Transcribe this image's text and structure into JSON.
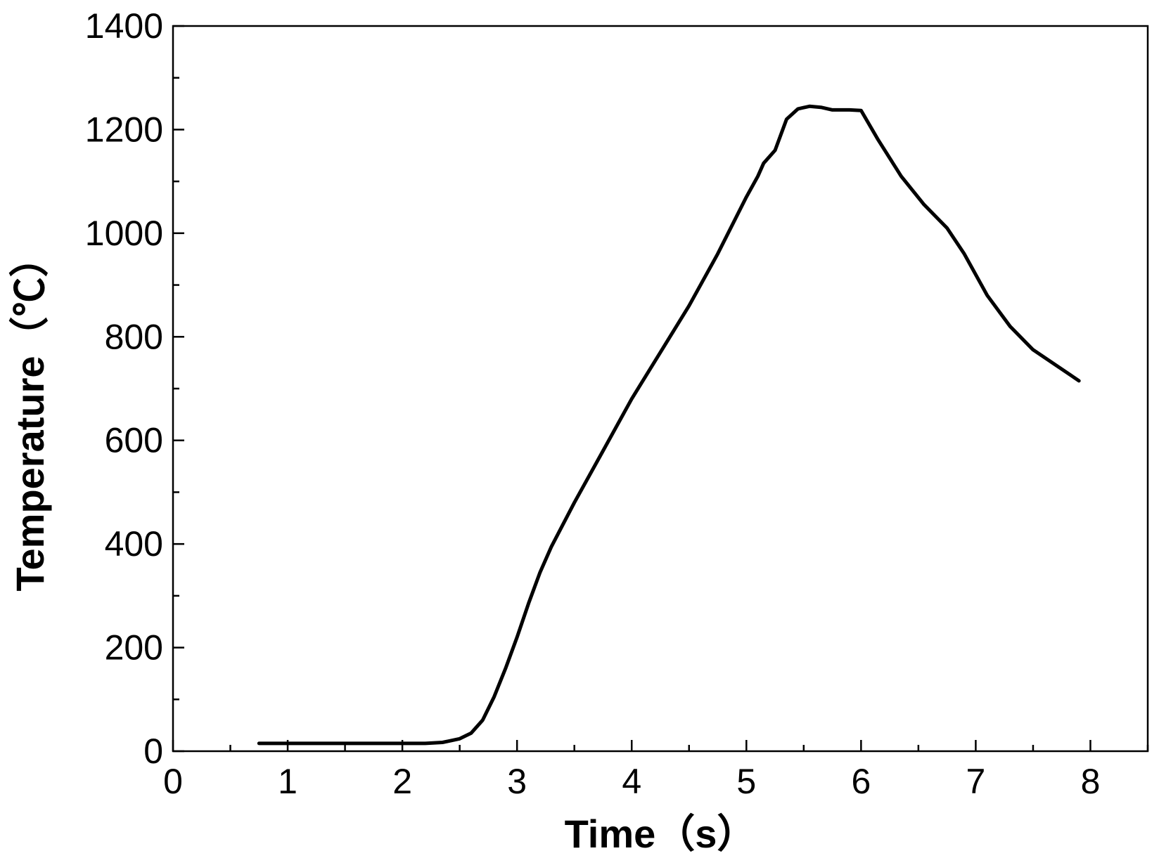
{
  "chart_data": {
    "type": "line",
    "xlabel": "Time（s）",
    "ylabel": "Temperature（℃）",
    "xlim": [
      0,
      8.5
    ],
    "ylim": [
      0,
      1400
    ],
    "xticks": [
      0,
      1,
      2,
      3,
      4,
      5,
      6,
      7,
      8
    ],
    "yticks": [
      0,
      200,
      400,
      600,
      800,
      1000,
      1200,
      1400
    ],
    "grid": false,
    "legend": "none",
    "line_color": "#000000",
    "series": [
      {
        "x": [
          0.75,
          1.0,
          1.5,
          2.0,
          2.2,
          2.35,
          2.5,
          2.6,
          2.7,
          2.8,
          2.9,
          3.0,
          3.1,
          3.2,
          3.3,
          3.5,
          3.75,
          4.0,
          4.25,
          4.5,
          4.75,
          5.0,
          5.1,
          5.15,
          5.25,
          5.35,
          5.45,
          5.55,
          5.65,
          5.75,
          5.9,
          6.0,
          6.15,
          6.35,
          6.55,
          6.75,
          6.9,
          7.1,
          7.3,
          7.5,
          7.7,
          7.9
        ],
        "y": [
          15,
          15,
          15,
          15,
          15,
          17,
          24,
          35,
          60,
          105,
          160,
          220,
          285,
          345,
          395,
          480,
          580,
          680,
          770,
          860,
          960,
          1070,
          1110,
          1135,
          1160,
          1220,
          1240,
          1245,
          1243,
          1238,
          1238,
          1237,
          1180,
          1110,
          1055,
          1010,
          960,
          880,
          820,
          775,
          745,
          715
        ]
      }
    ]
  }
}
